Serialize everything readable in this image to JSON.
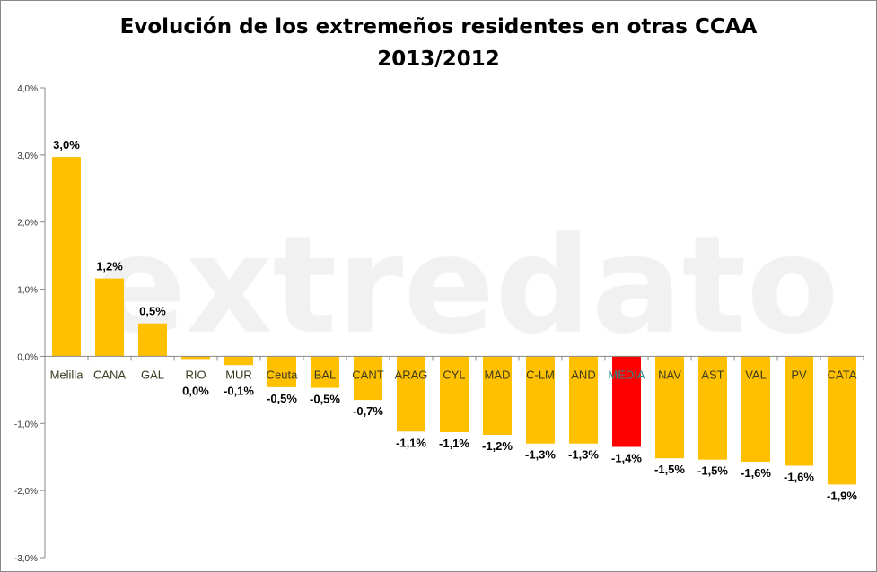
{
  "chart_data": {
    "type": "bar",
    "title": "Evolución de los extremeños residentes en otras CCAA",
    "subtitle": "2013/2012",
    "watermark": "extredato",
    "xlabel": "",
    "ylabel": "",
    "ylim": [
      -3.0,
      4.0
    ],
    "yticks": [
      "-3,0%",
      "-2,0%",
      "-1,0%",
      "0,0%",
      "1,0%",
      "2,0%",
      "3,0%",
      "4,0%"
    ],
    "grid": false,
    "legend": "none",
    "categories": [
      "Melilla",
      "CANA",
      "GAL",
      "RIO",
      "MUR",
      "Ceuta",
      "BAL",
      "CANT",
      "ARAG",
      "CYL",
      "MAD",
      "C-LM",
      "AND",
      "MEDIA",
      "NAV",
      "AST",
      "VAL",
      "PV",
      "CATA"
    ],
    "values": [
      2.97,
      1.16,
      0.49,
      -0.04,
      -0.13,
      -0.46,
      -0.47,
      -0.65,
      -1.12,
      -1.13,
      -1.17,
      -1.3,
      -1.3,
      -1.35,
      -1.52,
      -1.54,
      -1.57,
      -1.63,
      -1.91
    ],
    "data_labels": [
      "3,0%",
      "1,2%",
      "0,5%",
      "0,0%",
      "-0,1%",
      "-0,5%",
      "-0,5%",
      "-0,7%",
      "-1,1%",
      "-1,1%",
      "-1,2%",
      "-1,3%",
      "-1,3%",
      "-1,4%",
      "-1,5%",
      "-1,5%",
      "-1,6%",
      "-1,6%",
      "-1,9%"
    ],
    "colors": {
      "default": "#FFC000",
      "highlight": "#FF0000",
      "highlight_category": "MEDIA"
    }
  }
}
